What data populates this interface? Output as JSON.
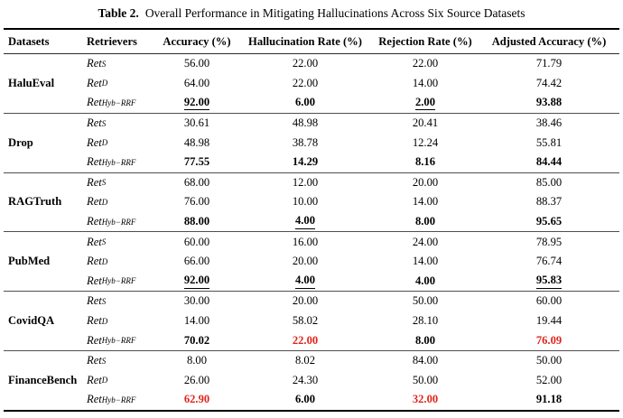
{
  "caption": {
    "label": "Table 2.",
    "text": "Overall Performance in Mitigating Hallucinations Across Six Source Datasets"
  },
  "columns": [
    "Datasets",
    "Retrievers",
    "Accuracy (%)",
    "Hallucination Rate (%)",
    "Rejection Rate (%)",
    "Adjusted Accuracy (%)"
  ],
  "retriever_base": "Ret",
  "colors": {
    "highlight_red": "#e0251c",
    "text": "#000000",
    "rule": "#000000"
  },
  "sections": [
    {
      "dataset": "HaluEval",
      "rows": [
        {
          "retriever_sub": "S",
          "values": [
            {
              "text": "56.00"
            },
            {
              "text": "22.00"
            },
            {
              "text": "22.00"
            },
            {
              "text": "71.79"
            }
          ]
        },
        {
          "retriever_sub": "D",
          "values": [
            {
              "text": "64.00"
            },
            {
              "text": "22.00"
            },
            {
              "text": "14.00"
            },
            {
              "text": "74.42"
            }
          ]
        },
        {
          "retriever_sub": "Hyb−RRF",
          "values": [
            {
              "text": "92.00",
              "bold": true,
              "underline": true
            },
            {
              "text": "6.00",
              "bold": true
            },
            {
              "text": "2.00",
              "bold": true,
              "underline": true
            },
            {
              "text": "93.88",
              "bold": true
            }
          ]
        }
      ]
    },
    {
      "dataset": "Drop",
      "rows": [
        {
          "retriever_sub": "S",
          "values": [
            {
              "text": "30.61"
            },
            {
              "text": "48.98"
            },
            {
              "text": "20.41"
            },
            {
              "text": "38.46"
            }
          ]
        },
        {
          "retriever_sub": "D",
          "values": [
            {
              "text": "48.98"
            },
            {
              "text": "38.78"
            },
            {
              "text": "12.24"
            },
            {
              "text": "55.81"
            }
          ]
        },
        {
          "retriever_sub": "Hyb−RRF",
          "values": [
            {
              "text": "77.55",
              "bold": true
            },
            {
              "text": "14.29",
              "bold": true
            },
            {
              "text": "8.16",
              "bold": true
            },
            {
              "text": "84.44",
              "bold": true
            }
          ]
        }
      ]
    },
    {
      "dataset": "RAGTruth",
      "rows": [
        {
          "retriever_sub": "S",
          "values": [
            {
              "text": "68.00"
            },
            {
              "text": "12.00"
            },
            {
              "text": "20.00"
            },
            {
              "text": "85.00"
            }
          ]
        },
        {
          "retriever_sub": "D",
          "values": [
            {
              "text": "76.00"
            },
            {
              "text": "10.00"
            },
            {
              "text": "14.00"
            },
            {
              "text": "88.37"
            }
          ]
        },
        {
          "retriever_sub": "Hyb−RRF",
          "values": [
            {
              "text": "88.00",
              "bold": true
            },
            {
              "text": "4.00",
              "bold": true,
              "underline": true
            },
            {
              "text": "8.00",
              "bold": true
            },
            {
              "text": "95.65",
              "bold": true
            }
          ]
        }
      ]
    },
    {
      "dataset": "PubMed",
      "rows": [
        {
          "retriever_sub": "S",
          "values": [
            {
              "text": "60.00"
            },
            {
              "text": "16.00"
            },
            {
              "text": "24.00"
            },
            {
              "text": "78.95"
            }
          ]
        },
        {
          "retriever_sub": "D",
          "values": [
            {
              "text": "66.00"
            },
            {
              "text": "20.00"
            },
            {
              "text": "14.00"
            },
            {
              "text": "76.74"
            }
          ]
        },
        {
          "retriever_sub": "Hyb−RRF",
          "values": [
            {
              "text": "92.00",
              "bold": true,
              "underline": true
            },
            {
              "text": "4.00",
              "bold": true,
              "underline": true
            },
            {
              "text": "4.00",
              "bold": true
            },
            {
              "text": "95.83",
              "bold": true,
              "underline": true
            }
          ]
        }
      ]
    },
    {
      "dataset": "CovidQA",
      "rows": [
        {
          "retriever_sub": "S",
          "values": [
            {
              "text": "30.00"
            },
            {
              "text": "20.00"
            },
            {
              "text": "50.00"
            },
            {
              "text": "60.00"
            }
          ]
        },
        {
          "retriever_sub": "D",
          "values": [
            {
              "text": "14.00"
            },
            {
              "text": "58.02"
            },
            {
              "text": "28.10"
            },
            {
              "text": "19.44"
            }
          ]
        },
        {
          "retriever_sub": "Hyb−RRF",
          "values": [
            {
              "text": "70.02",
              "bold": true
            },
            {
              "text": "22.00",
              "bold": true,
              "red": true
            },
            {
              "text": "8.00",
              "bold": true
            },
            {
              "text": "76.09",
              "bold": true,
              "red": true
            }
          ]
        }
      ]
    },
    {
      "dataset": "FinanceBench",
      "rows": [
        {
          "retriever_sub": "S",
          "values": [
            {
              "text": "8.00"
            },
            {
              "text": "8.02"
            },
            {
              "text": "84.00"
            },
            {
              "text": "50.00"
            }
          ]
        },
        {
          "retriever_sub": "D",
          "values": [
            {
              "text": "26.00"
            },
            {
              "text": "24.30"
            },
            {
              "text": "50.00"
            },
            {
              "text": "52.00"
            }
          ]
        },
        {
          "retriever_sub": "Hyb−RRF",
          "values": [
            {
              "text": "62.90",
              "bold": true,
              "red": true
            },
            {
              "text": "6.00",
              "bold": true
            },
            {
              "text": "32.00",
              "bold": true,
              "red": true
            },
            {
              "text": "91.18",
              "bold": true
            }
          ]
        }
      ]
    }
  ]
}
